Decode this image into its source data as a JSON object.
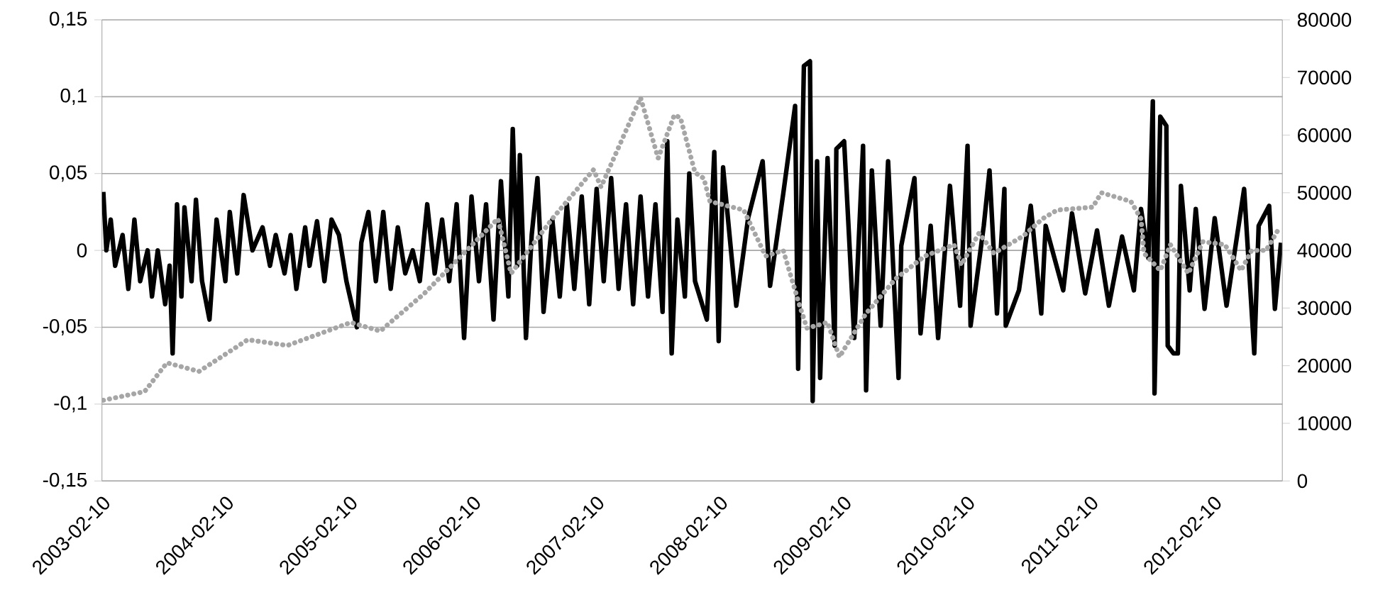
{
  "chart_data": {
    "type": "line",
    "xlim": [
      "2003-02-10",
      "2012-09-01"
    ],
    "xticks": [
      "2003-02-10",
      "2004-02-10",
      "2005-02-10",
      "2006-02-10",
      "2007-02-10",
      "2008-02-10",
      "2009-02-10",
      "2010-02-10",
      "2011-02-10",
      "2012-02-10"
    ],
    "ylim": [
      -0.15,
      0.15
    ],
    "yticks": [
      {
        "value": -0.15,
        "label": "-0,15"
      },
      {
        "value": -0.1,
        "label": "-0,1"
      },
      {
        "value": -0.05,
        "label": "-0,05"
      },
      0,
      {
        "value": 0.05,
        "label": "0,05"
      },
      {
        "value": 0.1,
        "label": "0,1"
      },
      {
        "value": 0.15,
        "label": "0,15"
      }
    ],
    "y2lim": [
      0,
      80000
    ],
    "y2ticks": [
      0,
      10000,
      20000,
      30000,
      40000,
      50000,
      60000,
      70000,
      80000
    ],
    "grid": "y",
    "series": [
      {
        "color": "#000000",
        "line_style": "solid",
        "x": [
          "2003-02-14",
          "2003-02-23",
          "2003-03-08",
          "2003-03-21",
          "2003-04-12",
          "2003-04-29",
          "2003-05-17",
          "2003-06-03",
          "2003-06-25",
          "2003-07-08",
          "2003-07-25",
          "2003-08-16",
          "2003-08-29",
          "2003-09-07",
          "2003-09-20",
          "2003-10-03",
          "2003-10-12",
          "2003-11-02",
          "2003-11-15",
          "2003-12-03",
          "2003-12-25",
          "2004-01-15",
          "2004-02-10",
          "2004-02-23",
          "2004-03-16",
          "2004-04-04",
          "2004-04-30",
          "2004-05-30",
          "2004-06-21",
          "2004-07-08",
          "2004-08-03",
          "2004-08-21",
          "2004-09-07",
          "2004-10-03",
          "2004-10-16",
          "2004-11-07",
          "2004-11-29",
          "2004-12-20",
          "2005-01-11",
          "2005-02-02",
          "2005-03-05",
          "2005-03-18",
          "2005-04-08",
          "2005-04-30",
          "2005-05-22",
          "2005-06-13",
          "2005-07-04",
          "2005-07-26",
          "2005-08-17",
          "2005-09-07",
          "2005-09-29",
          "2005-10-21",
          "2005-11-12",
          "2005-12-03",
          "2005-12-25",
          "2006-01-16",
          "2006-02-07",
          "2006-03-01",
          "2006-03-22",
          "2006-04-13",
          "2006-05-05",
          "2006-05-27",
          "2006-06-09",
          "2006-06-22",
          "2006-06-30",
          "2006-07-18",
          "2006-08-04",
          "2006-08-21",
          "2006-09-08",
          "2006-10-04",
          "2006-10-26",
          "2006-11-16",
          "2006-12-08",
          "2006-12-30",
          "2007-01-21",
          "2007-02-12",
          "2007-03-05",
          "2007-03-27",
          "2007-04-18",
          "2007-05-10",
          "2007-05-31",
          "2007-06-22",
          "2007-07-14",
          "2007-08-05",
          "2007-08-26",
          "2007-09-09",
          "2007-09-22",
          "2007-10-09",
          "2007-10-31",
          "2007-11-13",
          "2007-11-30",
          "2008-01-04",
          "2008-01-26",
          "2008-02-08",
          "2008-02-21",
          "2008-03-31",
          "2008-05-05",
          "2008-06-17",
          "2008-07-09",
          "2008-08-17",
          "2008-09-21",
          "2008-09-30",
          "2008-10-17",
          "2008-11-04",
          "2008-11-12",
          "2008-11-25",
          "2008-12-04",
          "2008-12-26",
          "2009-01-16",
          "2009-01-21",
          "2009-02-13",
          "2009-03-15",
          "2009-04-10",
          "2009-04-19",
          "2009-05-06",
          "2009-06-01",
          "2009-06-23",
          "2009-07-24",
          "2009-08-01",
          "2009-09-09",
          "2009-09-27",
          "2009-10-27",
          "2009-11-18",
          "2009-12-23",
          "2010-01-22",
          "2010-02-13",
          "2010-02-22",
          "2010-04-02",
          "2010-04-19",
          "2010-05-11",
          "2010-06-02",
          "2010-06-06",
          "2010-07-15",
          "2010-08-19",
          "2010-09-19",
          "2010-10-02",
          "2010-11-23",
          "2010-12-19",
          "2011-01-27",
          "2011-03-03",
          "2011-04-07",
          "2011-05-16",
          "2011-06-20",
          "2011-07-11",
          "2011-08-02",
          "2011-08-15",
          "2011-08-20",
          "2011-09-06",
          "2011-09-24",
          "2011-09-28",
          "2011-10-15",
          "2011-10-28",
          "2011-11-06",
          "2011-12-02",
          "2011-12-20",
          "2012-01-15",
          "2012-02-14",
          "2012-03-20",
          "2012-05-11",
          "2012-06-10",
          "2012-06-23",
          "2012-07-24",
          "2012-08-10",
          "2012-08-28"
        ],
        "values": [
          0.038,
          0.0,
          0.02,
          -0.01,
          0.01,
          -0.025,
          0.02,
          -0.02,
          0.0,
          -0.03,
          0.0,
          -0.035,
          -0.01,
          -0.067,
          0.03,
          -0.03,
          0.028,
          -0.02,
          0.033,
          -0.02,
          -0.045,
          0.02,
          -0.02,
          0.025,
          -0.015,
          0.036,
          0.0,
          0.015,
          -0.01,
          0.01,
          -0.015,
          0.01,
          -0.025,
          0.015,
          -0.01,
          0.019,
          -0.02,
          0.02,
          0.01,
          -0.02,
          -0.05,
          0.005,
          0.025,
          -0.02,
          0.025,
          -0.025,
          0.015,
          -0.015,
          0.0,
          -0.02,
          0.03,
          -0.015,
          0.02,
          -0.02,
          0.03,
          -0.057,
          0.035,
          -0.02,
          0.03,
          -0.045,
          0.045,
          -0.03,
          0.079,
          -0.01,
          0.062,
          -0.057,
          0.01,
          0.047,
          -0.04,
          0.02,
          -0.03,
          0.03,
          -0.025,
          0.035,
          -0.035,
          0.04,
          -0.02,
          0.047,
          -0.025,
          0.03,
          -0.035,
          0.035,
          -0.03,
          0.03,
          -0.04,
          0.071,
          -0.067,
          0.02,
          -0.03,
          0.05,
          -0.02,
          -0.045,
          0.064,
          -0.059,
          0.054,
          -0.036,
          0.021,
          0.058,
          -0.023,
          0.037,
          0.094,
          -0.077,
          0.12,
          0.123,
          -0.098,
          0.058,
          -0.083,
          0.06,
          -0.062,
          0.066,
          0.071,
          -0.057,
          0.068,
          -0.091,
          0.052,
          -0.049,
          0.058,
          -0.083,
          0.003,
          0.047,
          -0.054,
          0.016,
          -0.057,
          0.042,
          -0.036,
          0.068,
          -0.049,
          0.016,
          0.052,
          -0.041,
          0.04,
          -0.049,
          -0.026,
          0.029,
          -0.041,
          0.016,
          -0.026,
          0.024,
          -0.028,
          0.013,
          -0.036,
          0.009,
          -0.026,
          0.027,
          -0.005,
          0.097,
          -0.093,
          0.087,
          0.081,
          -0.062,
          -0.067,
          -0.067,
          0.042,
          -0.026,
          0.027,
          -0.038,
          0.021,
          -0.036,
          0.04,
          -0.067,
          0.016,
          0.029,
          -0.038,
          0.005
        ]
      },
      {
        "axis": "y2",
        "color": "#a6a6a6",
        "line_style": "dashed",
        "x": [
          "2003-02-14",
          "2003-06-16",
          "2003-08-21",
          "2003-11-24",
          "2004-04-16",
          "2004-08-11",
          "2005-02-15",
          "2005-05-13",
          "2005-09-20",
          "2006-04-26",
          "2006-06-04",
          "2006-10-04",
          "2007-02-03",
          "2007-02-25",
          "2007-06-22",
          "2007-08-13",
          "2007-09-30",
          "2007-10-18",
          "2007-11-30",
          "2007-12-26",
          "2008-01-13",
          "2008-04-22",
          "2008-06-26",
          "2008-08-17",
          "2008-10-04",
          "2008-10-26",
          "2008-12-26",
          "2009-01-30",
          "2009-04-18",
          "2009-06-01",
          "2009-07-14",
          "2009-10-09",
          "2010-01-04",
          "2010-01-26",
          "2010-03-19",
          "2010-05-02",
          "2010-07-28",
          "2010-09-23",
          "2010-11-05",
          "2011-02-18",
          "2011-03-16",
          "2011-06-11",
          "2011-07-11",
          "2011-07-20",
          "2011-09-06",
          "2011-10-06",
          "2011-11-28",
          "2012-01-10",
          "2012-03-15",
          "2012-05-02",
          "2012-06-02",
          "2012-07-15",
          "2012-08-19"
        ],
        "values": [
          14000,
          15500,
          20500,
          19000,
          24500,
          23500,
          27500,
          26000,
          32500,
          45500,
          36000,
          45500,
          54000,
          51000,
          66500,
          56000,
          63500,
          63000,
          53500,
          52500,
          48500,
          47000,
          39000,
          40000,
          30500,
          26500,
          27500,
          21500,
          29000,
          32000,
          35000,
          39000,
          41000,
          37500,
          43000,
          39500,
          42500,
          45500,
          47000,
          47500,
          50000,
          48500,
          45500,
          39500,
          36500,
          41000,
          36000,
          41500,
          41000,
          36500,
          40000,
          40000,
          43500
        ]
      }
    ]
  }
}
